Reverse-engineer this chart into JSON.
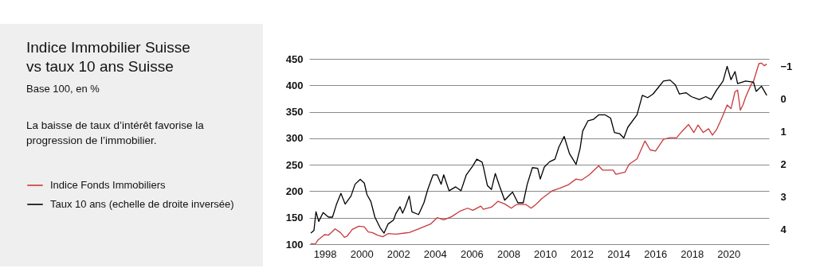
{
  "chart_data": {
    "type": "line",
    "title": "Indice Immobilier Suisse vs taux 10 ans Suisse",
    "subtitle": "Base 100, en %",
    "annotations": [
      "La baisse de taux d’intérêt favorise la progression de l’immobilier."
    ],
    "xlim": [
      1997.15,
      2022.2
    ],
    "xticks": [
      1998,
      2000,
      2002,
      2004,
      2006,
      2008,
      2010,
      2012,
      2014,
      2016,
      2018,
      2020
    ],
    "ylim": [
      100,
      450
    ],
    "yticks": [
      100,
      150,
      200,
      250,
      300,
      350,
      400,
      450
    ],
    "y2lim": [
      4.46,
      -1.23
    ],
    "y2ticks": [
      -1,
      0,
      1,
      2,
      3,
      4
    ],
    "grid": "y",
    "legend": "left",
    "line_style": "solid",
    "series": [
      {
        "name": "Indice Fonds Immobiliers",
        "color": "#c8393b",
        "x": [
          1997.24,
          1997.48,
          1997.63,
          1997.99,
          1998.2,
          1998.56,
          1998.85,
          1999.07,
          1999.21,
          1999.5,
          1999.86,
          2000.15,
          2000.37,
          2000.58,
          2000.87,
          2001.16,
          2001.45,
          2001.88,
          2002.6,
          2003.18,
          2003.76,
          2004.12,
          2004.48,
          2004.91,
          2005.35,
          2005.78,
          2006.07,
          2006.5,
          2006.64,
          2007.08,
          2007.44,
          2007.8,
          2008.16,
          2008.45,
          2008.95,
          2009.24,
          2009.53,
          2009.82,
          2010.39,
          2010.83,
          2011.26,
          2011.69,
          2011.98,
          2012.41,
          2012.92,
          2013.13,
          2013.71,
          2013.86,
          2014.36,
          2014.58,
          2015.01,
          2015.44,
          2015.73,
          2016.02,
          2016.45,
          2016.81,
          2017.17,
          2017.46,
          2017.82,
          2018.11,
          2018.33,
          2018.62,
          2018.91,
          2019.12,
          2019.34,
          2019.63,
          2019.92,
          2020.13,
          2020.35,
          2020.49,
          2020.64,
          2020.78,
          2020.93,
          2021.22,
          2021.36,
          2021.65,
          2021.79,
          2021.94,
          2022.08
        ],
        "values": [
          101,
          100,
          108,
          118,
          117,
          129,
          122,
          113,
          115,
          128,
          134,
          133,
          123,
          122,
          117,
          114,
          120,
          119,
          122,
          130,
          138,
          150,
          146,
          152,
          162,
          168,
          164,
          172,
          166,
          170,
          181,
          176,
          168,
          175,
          175,
          168,
          176,
          186,
          201,
          206,
          212,
          223,
          221,
          231,
          248,
          240,
          240,
          232,
          236,
          251,
          261,
          295,
          278,
          276,
          298,
          301,
          301,
          313,
          326,
          311,
          325,
          311,
          318,
          306,
          316,
          338,
          363,
          356,
          388,
          391,
          353,
          363,
          378,
          401,
          408,
          441,
          442,
          437,
          440
        ]
      },
      {
        "name": "Taux 10 ans (echelle de droite inversée)",
        "color": "#000000",
        "axis": "y2",
        "x": [
          1997.24,
          1997.41,
          1997.52,
          1997.67,
          1997.91,
          1998.2,
          1998.42,
          1998.64,
          1998.88,
          1999.11,
          1999.43,
          1999.65,
          1999.93,
          2000.15,
          2000.3,
          2000.51,
          2000.73,
          2001.02,
          2001.23,
          2001.45,
          2001.74,
          2001.88,
          2002.1,
          2002.24,
          2002.39,
          2002.6,
          2002.75,
          2003.11,
          2003.4,
          2003.61,
          2003.9,
          2004.12,
          2004.34,
          2004.48,
          2004.77,
          2005.13,
          2005.42,
          2005.71,
          2006.07,
          2006.28,
          2006.57,
          2006.64,
          2006.86,
          2007.08,
          2007.29,
          2007.51,
          2007.8,
          2008.09,
          2008.23,
          2008.52,
          2008.81,
          2009.03,
          2009.31,
          2009.6,
          2009.74,
          2009.96,
          2010.25,
          2010.54,
          2010.75,
          2011.04,
          2011.33,
          2011.69,
          2011.91,
          2012.05,
          2012.34,
          2012.63,
          2012.92,
          2013.28,
          2013.57,
          2013.78,
          2014.07,
          2014.29,
          2014.51,
          2015.01,
          2015.3,
          2015.59,
          2015.88,
          2016.17,
          2016.45,
          2016.81,
          2017.1,
          2017.32,
          2017.68,
          2017.97,
          2018.4,
          2018.76,
          2019.05,
          2019.34,
          2019.7,
          2019.92,
          2020.13,
          2020.35,
          2020.49,
          2020.93,
          2021.36,
          2021.5,
          2021.79,
          2022.08
        ],
        "values": [
          4.12,
          4.04,
          3.46,
          3.76,
          3.49,
          3.63,
          3.63,
          3.23,
          2.9,
          3.23,
          2.98,
          2.62,
          2.47,
          2.58,
          2.94,
          3.15,
          3.63,
          3.96,
          4.12,
          3.84,
          3.72,
          3.51,
          3.31,
          3.51,
          3.31,
          2.98,
          3.47,
          3.55,
          3.19,
          2.78,
          2.33,
          2.33,
          2.62,
          2.33,
          2.82,
          2.7,
          2.82,
          2.33,
          2.05,
          1.85,
          1.94,
          2.09,
          2.66,
          2.78,
          2.29,
          2.66,
          3.11,
          2.94,
          2.86,
          3.19,
          3.19,
          2.62,
          2.11,
          2.13,
          2.46,
          2.09,
          1.93,
          1.85,
          1.48,
          1.15,
          1.68,
          2.01,
          1.52,
          0.99,
          0.67,
          0.63,
          0.49,
          0.49,
          0.59,
          1.03,
          1.07,
          1.2,
          0.87,
          0.49,
          -0.11,
          -0.04,
          -0.15,
          -0.35,
          -0.55,
          -0.58,
          -0.43,
          -0.15,
          -0.19,
          -0.07,
          0.02,
          -0.07,
          0.02,
          -0.27,
          -0.55,
          -1.0,
          -0.59,
          -0.84,
          -0.47,
          -0.55,
          -0.51,
          -0.23,
          -0.39,
          -0.11
        ]
      }
    ]
  }
}
